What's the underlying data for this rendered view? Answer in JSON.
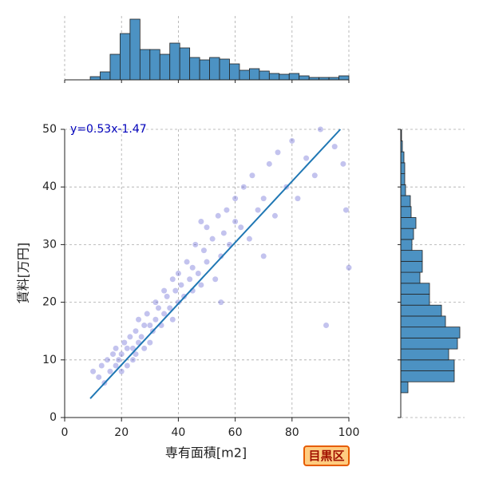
{
  "chart_data": [
    {
      "type": "scatter",
      "x": [
        10,
        12,
        13,
        14,
        15,
        16,
        17,
        18,
        18,
        19,
        20,
        20,
        21,
        22,
        22,
        23,
        24,
        24,
        25,
        25,
        26,
        26,
        27,
        28,
        28,
        29,
        30,
        30,
        31,
        32,
        32,
        33,
        34,
        35,
        35,
        36,
        37,
        38,
        38,
        39,
        40,
        40,
        41,
        42,
        43,
        44,
        45,
        45,
        46,
        47,
        48,
        49,
        50,
        50,
        52,
        53,
        54,
        55,
        56,
        57,
        58,
        60,
        60,
        62,
        63,
        65,
        66,
        68,
        70,
        72,
        74,
        75,
        78,
        80,
        82,
        85,
        88,
        90,
        95,
        98,
        100,
        99,
        92,
        55,
        48,
        70
      ],
      "y": [
        8,
        7,
        9,
        6,
        10,
        8,
        11,
        9,
        12,
        10,
        11,
        8,
        13,
        12,
        9,
        14,
        12,
        10,
        15,
        11,
        13,
        17,
        14,
        12,
        16,
        18,
        13,
        16,
        15,
        20,
        17,
        19,
        16,
        22,
        18,
        21,
        19,
        24,
        17,
        22,
        20,
        25,
        23,
        21,
        27,
        24,
        26,
        22,
        30,
        25,
        23,
        29,
        27,
        33,
        31,
        24,
        35,
        28,
        32,
        36,
        30,
        34,
        38,
        33,
        40,
        31,
        42,
        36,
        38,
        44,
        35,
        46,
        40,
        48,
        38,
        45,
        42,
        50,
        47,
        44,
        26,
        36,
        16,
        20,
        34,
        28
      ],
      "color": "#3838c8",
      "xlabel": "専有面積[m2]",
      "ylabel": "賃料[万円]",
      "xlim": [
        0,
        100
      ],
      "ylim": [
        0,
        50
      ],
      "xticks": [
        0,
        20,
        40,
        60,
        80,
        100
      ],
      "yticks": [
        0,
        10,
        20,
        30,
        40,
        50
      ],
      "grid": true,
      "regression": {
        "x": [
          9,
          97
        ],
        "y": [
          3.3,
          50
        ],
        "color": "#1f77b4",
        "label": "y=0.53x-1.47"
      }
    },
    {
      "type": "histogram",
      "orientation": "vertical",
      "bins": [
        9,
        12.5,
        16,
        19.5,
        23,
        26.5,
        30,
        33.5,
        37,
        40.5,
        44,
        47.5,
        51,
        54.5,
        58,
        61.5,
        65,
        68.5,
        72,
        75.5,
        79,
        82.5,
        86,
        89.5,
        93,
        96.5,
        100
      ],
      "counts": [
        8,
        20,
        64,
        116,
        152,
        76,
        76,
        64,
        92,
        80,
        56,
        50,
        56,
        52,
        40,
        24,
        28,
        22,
        16,
        14,
        16,
        10,
        6,
        6,
        6,
        10
      ],
      "ylim": [
        0,
        160
      ],
      "color": "#4c92c3"
    },
    {
      "type": "histogram",
      "orientation": "horizontal",
      "bins": [
        4.3,
        6.2,
        8.1,
        10,
        11.9,
        13.8,
        15.7,
        17.6,
        19.5,
        21.4,
        23.3,
        25.2,
        27.1,
        29,
        30.9,
        32.8,
        34.7,
        36.6,
        38.5,
        40.4,
        42.3,
        44.2,
        46.1,
        48,
        49.9
      ],
      "counts": [
        18,
        134,
        134,
        120,
        142,
        148,
        112,
        102,
        72,
        72,
        48,
        54,
        54,
        28,
        32,
        38,
        26,
        24,
        12,
        10,
        10,
        8,
        4,
        2
      ],
      "xlim": [
        0,
        160
      ],
      "color": "#4c92c3"
    }
  ],
  "badge": "目黒区"
}
